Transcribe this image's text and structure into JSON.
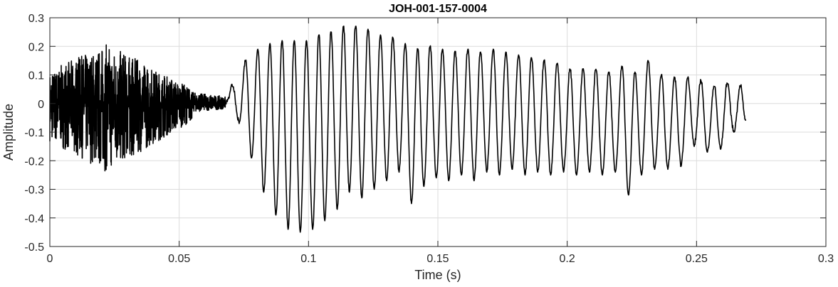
{
  "chart_data": {
    "type": "line",
    "title": "JOH-001-157-0004",
    "xlabel": "Time (s)",
    "ylabel": "Amplitude",
    "xlim": [
      0,
      0.3
    ],
    "ylim": [
      -0.5,
      0.3
    ],
    "grid": true,
    "xticks": [
      0,
      0.05,
      0.1,
      0.15,
      0.2,
      0.25,
      0.3
    ],
    "xtick_labels": [
      "0",
      "0.05",
      "0.1",
      "0.15",
      "0.2",
      "0.25",
      "0.3"
    ],
    "yticks": [
      -0.5,
      -0.4,
      -0.3,
      -0.2,
      -0.1,
      0,
      0.1,
      0.2,
      0.3
    ],
    "ytick_labels": [
      "-0.5",
      "-0.4",
      "-0.3",
      "-0.2",
      "-0.1",
      "0",
      "0.1",
      "0.2",
      "0.3"
    ],
    "colors": {
      "line": "#000000",
      "grid": "#dcdcdc",
      "axes": "#262626"
    },
    "series": [
      {
        "x_start": 0,
        "x_end": 0.269,
        "segments": [
          {
            "kind": "noise",
            "t0": 0.0,
            "t1": 0.055,
            "envelope_peak_time": 0.022,
            "max": 0.21,
            "min": -0.24
          },
          {
            "kind": "noise",
            "t0": 0.055,
            "t1": 0.068,
            "max": 0.04,
            "min": -0.03
          },
          {
            "kind": "oscillation",
            "t0": 0.068,
            "t1": 0.269,
            "max": 0.27,
            "min": -0.45
          }
        ],
        "peaks": [
          [
            0.0707,
            0.06
          ],
          [
            0.0757,
            0.15
          ],
          [
            0.0804,
            0.19
          ],
          [
            0.0851,
            0.21
          ],
          [
            0.0898,
            0.22
          ],
          [
            0.0945,
            0.22
          ],
          [
            0.0992,
            0.22
          ],
          [
            0.104,
            0.24
          ],
          [
            0.1087,
            0.25
          ],
          [
            0.1135,
            0.27
          ],
          [
            0.1182,
            0.27
          ],
          [
            0.123,
            0.26
          ],
          [
            0.1278,
            0.24
          ],
          [
            0.1326,
            0.23
          ],
          [
            0.1374,
            0.21
          ],
          [
            0.1422,
            0.19
          ],
          [
            0.147,
            0.2
          ],
          [
            0.1518,
            0.19
          ],
          [
            0.1567,
            0.18
          ],
          [
            0.1616,
            0.19
          ],
          [
            0.1665,
            0.18
          ],
          [
            0.1714,
            0.19
          ],
          [
            0.1763,
            0.18
          ],
          [
            0.1812,
            0.17
          ],
          [
            0.1862,
            0.16
          ],
          [
            0.1911,
            0.15
          ],
          [
            0.1961,
            0.14
          ],
          [
            0.2011,
            0.12
          ],
          [
            0.2061,
            0.12
          ],
          [
            0.2111,
            0.12
          ],
          [
            0.2161,
            0.11
          ],
          [
            0.2212,
            0.13
          ],
          [
            0.2262,
            0.11
          ],
          [
            0.2313,
            0.15
          ],
          [
            0.2364,
            0.1
          ],
          [
            0.2415,
            0.09
          ],
          [
            0.2466,
            0.09
          ],
          [
            0.2517,
            0.08
          ],
          [
            0.2568,
            0.06
          ],
          [
            0.2619,
            0.07
          ],
          [
            0.267,
            0.06
          ]
        ],
        "troughs": [
          [
            0.0732,
            -0.07
          ],
          [
            0.078,
            -0.19
          ],
          [
            0.0827,
            -0.31
          ],
          [
            0.0874,
            -0.39
          ],
          [
            0.0921,
            -0.44
          ],
          [
            0.0968,
            -0.45
          ],
          [
            0.1016,
            -0.44
          ],
          [
            0.1063,
            -0.41
          ],
          [
            0.1111,
            -0.37
          ],
          [
            0.1158,
            -0.31
          ],
          [
            0.1206,
            -0.33
          ],
          [
            0.1254,
            -0.3
          ],
          [
            0.1302,
            -0.27
          ],
          [
            0.135,
            -0.24
          ],
          [
            0.1398,
            -0.35
          ],
          [
            0.1446,
            -0.29
          ],
          [
            0.1494,
            -0.26
          ],
          [
            0.1542,
            -0.27
          ],
          [
            0.1591,
            -0.25
          ],
          [
            0.164,
            -0.27
          ],
          [
            0.1689,
            -0.24
          ],
          [
            0.1738,
            -0.25
          ],
          [
            0.1787,
            -0.23
          ],
          [
            0.1837,
            -0.25
          ],
          [
            0.1886,
            -0.24
          ],
          [
            0.1936,
            -0.25
          ],
          [
            0.1986,
            -0.24
          ],
          [
            0.2036,
            -0.25
          ],
          [
            0.2086,
            -0.24
          ],
          [
            0.2136,
            -0.25
          ],
          [
            0.2186,
            -0.24
          ],
          [
            0.2237,
            -0.32
          ],
          [
            0.2287,
            -0.25
          ],
          [
            0.2338,
            -0.23
          ],
          [
            0.2389,
            -0.23
          ],
          [
            0.244,
            -0.22
          ],
          [
            0.2491,
            -0.15
          ],
          [
            0.2542,
            -0.17
          ],
          [
            0.2593,
            -0.16
          ],
          [
            0.2644,
            -0.1
          ],
          [
            0.269,
            -0.06
          ]
        ]
      }
    ]
  }
}
